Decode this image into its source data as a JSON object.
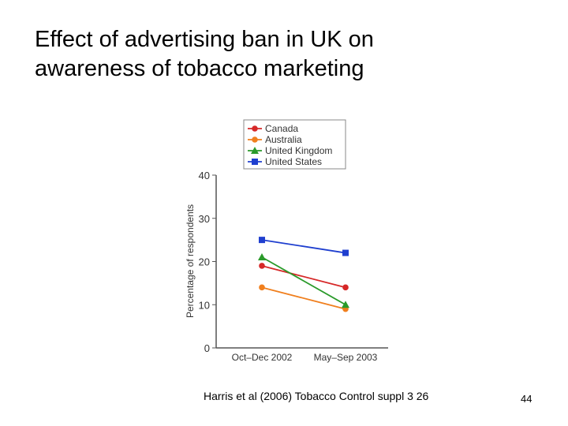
{
  "slide": {
    "title_line1": "Effect of advertising ban in UK on",
    "title_line2": "awareness of tobacco marketing",
    "citation": "Harris et al (2006) Tobacco Control suppl  3   26",
    "page_number": "44"
  },
  "chart_data": {
    "type": "line",
    "title": "",
    "xlabel": "",
    "ylabel": "Percentage of respondents",
    "categories": [
      "Oct–Dec 2002",
      "May–Sep 2003"
    ],
    "ylim": [
      0,
      40
    ],
    "yticks": [
      0,
      10,
      20,
      30,
      40
    ],
    "grid": false,
    "legend_position": "top",
    "series": [
      {
        "name": "Canada",
        "values": [
          19,
          14
        ],
        "color": "#d62828",
        "marker": "circle"
      },
      {
        "name": "Australia",
        "values": [
          14,
          9
        ],
        "color": "#f07f1e",
        "marker": "circle"
      },
      {
        "name": "United Kingdom",
        "values": [
          21,
          10
        ],
        "color": "#2a9a2a",
        "marker": "triangle"
      },
      {
        "name": "United States",
        "values": [
          25,
          22
        ],
        "color": "#1f3fcf",
        "marker": "square"
      }
    ]
  }
}
